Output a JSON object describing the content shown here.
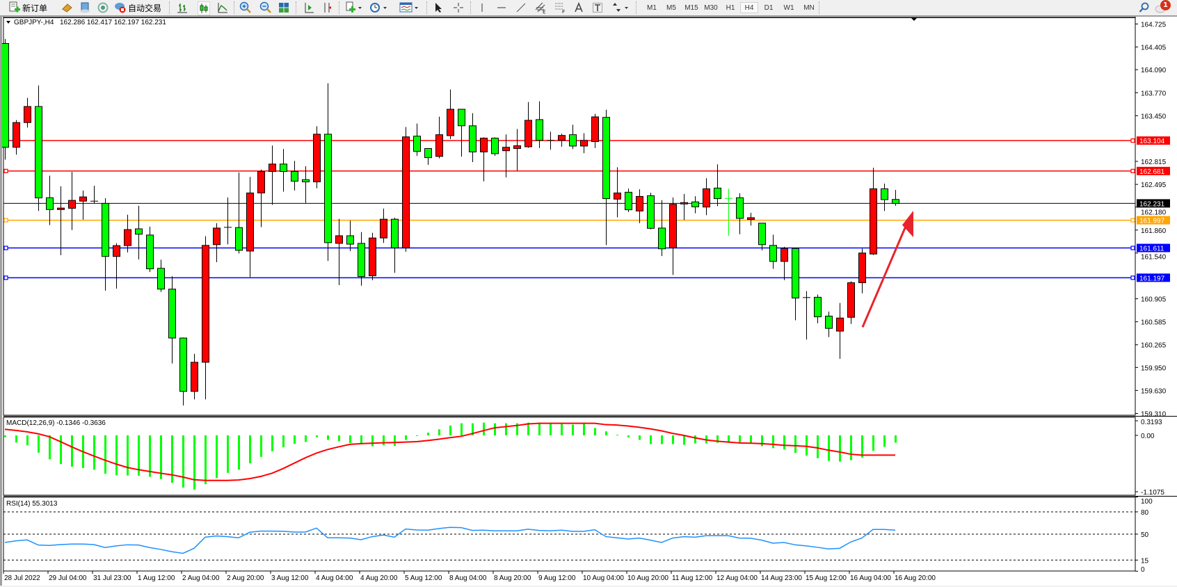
{
  "toolbar": {
    "new_order_label": "新订单",
    "auto_trading_label": "自动交易",
    "timeframes": [
      "M1",
      "M5",
      "M15",
      "M30",
      "H1",
      "H4",
      "D1",
      "W1",
      "MN"
    ],
    "active_timeframe": "H4",
    "notification_count": "1"
  },
  "chart_header": {
    "symbol": "GBPJPY-,H4",
    "ohlc": "162.286 162.417 162.197 162.231"
  },
  "colors": {
    "bull_candle": "#ff0000",
    "bear_candle": "#00ff00",
    "macd_histogram": "#00ff00",
    "macd_signal": "#ff0000",
    "rsi_line": "#1e90ff",
    "annotation_arrow": "#e8242a"
  },
  "price_axis": {
    "ticks": [
      "164.725",
      "164.405",
      "164.090",
      "163.770",
      "163.450",
      "162.815",
      "162.495",
      "162.180",
      "161.860",
      "161.540",
      "160.905",
      "160.585",
      "160.265",
      "159.950",
      "159.630",
      "159.310"
    ],
    "range": [
      159.31,
      164.725
    ]
  },
  "levels": [
    {
      "price": "163.104",
      "color": "#ff0000"
    },
    {
      "price": "162.681",
      "color": "#ff0000"
    },
    {
      "price": "162.231",
      "color": "#000000"
    },
    {
      "price": "161.997",
      "color": "#ffa500"
    },
    {
      "price": "161.611",
      "color": "#0000ff"
    },
    {
      "price": "161.197",
      "color": "#0000ff"
    }
  ],
  "time_axis": [
    "28 Jul 2022",
    "29 Jul 04:00",
    "31 Jul 23:00",
    "1 Aug 12:00",
    "2 Aug 04:00",
    "2 Aug 20:00",
    "3 Aug 12:00",
    "4 Aug 04:00",
    "4 Aug 20:00",
    "5 Aug 12:00",
    "8 Aug 04:00",
    "8 Aug 20:00",
    "9 Aug 12:00",
    "10 Aug 04:00",
    "10 Aug 20:00",
    "11 Aug 12:00",
    "12 Aug 04:00",
    "14 Aug 23:00",
    "15 Aug 12:00",
    "16 Aug 04:00",
    "16 Aug 20:00"
  ],
  "chart_data": [
    {
      "type": "candlestick",
      "symbol": "GBPJPY-",
      "timeframe": "H4",
      "ylim": [
        159.31,
        164.725
      ],
      "ohlc": [
        [
          164.454,
          164.516,
          162.839,
          163.011
        ],
        [
          163.011,
          163.389,
          162.908,
          163.355
        ],
        [
          163.355,
          163.698,
          163.286,
          163.578
        ],
        [
          163.578,
          163.87,
          162.125,
          162.307
        ],
        [
          162.31,
          162.616,
          161.929,
          162.145
        ],
        [
          162.145,
          162.468,
          161.51,
          162.166
        ],
        [
          162.163,
          162.668,
          161.86,
          162.273
        ],
        [
          162.262,
          162.41,
          162.005,
          162.321
        ],
        [
          162.262,
          162.475,
          162.228,
          162.262
        ],
        [
          162.231,
          162.303,
          161.018,
          161.493
        ],
        [
          161.493,
          161.678,
          161.046,
          161.644
        ],
        [
          161.644,
          162.073,
          161.548,
          161.867
        ],
        [
          161.877,
          162.197,
          161.451,
          161.802
        ],
        [
          161.791,
          161.908,
          161.276,
          161.321
        ],
        [
          161.328,
          161.448,
          161.0,
          161.039
        ],
        [
          161.039,
          161.218,
          160.005,
          160.359
        ],
        [
          160.359,
          160.366,
          159.421,
          159.617
        ],
        [
          159.617,
          160.139,
          159.506,
          160.022
        ],
        [
          160.022,
          161.774,
          159.506,
          161.647
        ],
        [
          161.657,
          161.956,
          161.413,
          161.888
        ],
        [
          161.898,
          162.314,
          161.661,
          161.898
        ],
        [
          161.895,
          162.661,
          161.534,
          161.578
        ],
        [
          161.568,
          162.599,
          161.207,
          162.376
        ],
        [
          162.376,
          162.702,
          161.901,
          162.675
        ],
        [
          162.675,
          163.035,
          162.211,
          162.778
        ],
        [
          162.778,
          162.987,
          162.393,
          162.675
        ],
        [
          162.675,
          162.822,
          162.41,
          162.54
        ],
        [
          162.561,
          162.747,
          162.238,
          162.53
        ],
        [
          162.53,
          163.303,
          162.441,
          163.193
        ],
        [
          163.193,
          163.901,
          161.431,
          161.685
        ],
        [
          161.675,
          162.015,
          161.094,
          161.781
        ],
        [
          161.781,
          161.991,
          161.568,
          161.664
        ],
        [
          161.675,
          161.833,
          161.087,
          161.214
        ],
        [
          161.224,
          161.822,
          161.163,
          161.75
        ],
        [
          161.75,
          162.159,
          161.682,
          162.011
        ],
        [
          162.011,
          162.032,
          161.266,
          161.613
        ],
        [
          161.613,
          163.293,
          161.558,
          163.156
        ],
        [
          163.166,
          163.341,
          162.891,
          162.953
        ],
        [
          162.994,
          162.994,
          162.767,
          162.867
        ],
        [
          162.884,
          163.437,
          162.857,
          163.186
        ],
        [
          163.173,
          163.815,
          163.125,
          163.54
        ],
        [
          163.54,
          163.54,
          162.881,
          163.31
        ],
        [
          163.31,
          163.485,
          162.805,
          162.946
        ],
        [
          162.946,
          163.149,
          162.537,
          163.138
        ],
        [
          163.138,
          163.149,
          162.891,
          162.922
        ],
        [
          162.963,
          163.19,
          162.592,
          163.011
        ],
        [
          162.994,
          163.265,
          162.685,
          163.032
        ],
        [
          163.018,
          163.64,
          163.004,
          163.386
        ],
        [
          163.396,
          163.65,
          163.0,
          163.107
        ],
        [
          163.107,
          163.228,
          162.977,
          163.107
        ],
        [
          163.107,
          163.2,
          163.018,
          163.176
        ],
        [
          163.186,
          163.324,
          162.987,
          163.028
        ],
        [
          163.028,
          163.207,
          162.929,
          163.107
        ],
        [
          163.09,
          163.475,
          163.0,
          163.434
        ],
        [
          163.427,
          163.533,
          161.651,
          162.297
        ],
        [
          162.29,
          162.733,
          162.037,
          162.376
        ],
        [
          162.386,
          162.437,
          162.111,
          162.142
        ],
        [
          162.125,
          162.427,
          161.956,
          162.328
        ],
        [
          162.338,
          162.379,
          161.87,
          161.884
        ],
        [
          161.888,
          162.276,
          161.499,
          161.599
        ],
        [
          161.613,
          162.314,
          161.235,
          162.218
        ],
        [
          162.225,
          162.362,
          162.001,
          162.242
        ],
        [
          162.252,
          162.331,
          162.094,
          162.183
        ],
        [
          162.18,
          162.581,
          162.067,
          162.434
        ],
        [
          162.444,
          162.774,
          162.193,
          162.297
        ],
        [
          162.301,
          162.434,
          161.781,
          162.3
        ],
        [
          162.31,
          162.372,
          161.802,
          162.022
        ],
        [
          162.008,
          162.101,
          161.922,
          162.032
        ],
        [
          161.956,
          161.956,
          161.578,
          161.657
        ],
        [
          161.647,
          161.795,
          161.321,
          161.424
        ],
        [
          161.424,
          161.627,
          161.163,
          161.603
        ],
        [
          161.603,
          161.603,
          160.606,
          160.915
        ],
        [
          160.922,
          161.012,
          160.338,
          160.922
        ],
        [
          160.926,
          160.963,
          160.565,
          160.654
        ],
        [
          160.664,
          160.726,
          160.373,
          160.493
        ],
        [
          160.455,
          160.846,
          160.07,
          160.637
        ],
        [
          160.647,
          161.149,
          160.555,
          161.128
        ],
        [
          161.128,
          161.603,
          160.98,
          161.541
        ],
        [
          161.527,
          162.726,
          161.513,
          162.434
        ],
        [
          162.434,
          162.506,
          162.125,
          162.283
        ],
        [
          162.286,
          162.417,
          162.197,
          162.231
        ]
      ]
    },
    {
      "type": "bar",
      "title": "MACD(12,26,9) -0.1346 -0.3636",
      "ylim": [
        -1.1075,
        0.3193
      ],
      "tick_labels": [
        "0.3193",
        "0.00",
        "-1.1075"
      ],
      "histogram": [
        -0.033,
        -0.132,
        -0.182,
        -0.318,
        -0.442,
        -0.529,
        -0.578,
        -0.603,
        -0.632,
        -0.706,
        -0.735,
        -0.739,
        -0.743,
        -0.764,
        -0.805,
        -0.876,
        -0.962,
        -1.0,
        -0.9,
        -0.785,
        -0.69,
        -0.632,
        -0.516,
        -0.396,
        -0.293,
        -0.219,
        -0.157,
        -0.12,
        -0.033,
        -0.083,
        -0.107,
        -0.14,
        -0.149,
        -0.202,
        -0.182,
        -0.194,
        -0.083,
        -0.012,
        0.05,
        0.112,
        0.182,
        0.223,
        0.223,
        0.235,
        0.223,
        0.223,
        0.223,
        0.235,
        0.235,
        0.211,
        0.211,
        0.198,
        0.211,
        0.136,
        0.074,
        0.012,
        -0.037,
        -0.083,
        -0.161,
        -0.161,
        -0.161,
        -0.173,
        -0.149,
        -0.149,
        -0.136,
        -0.136,
        -0.136,
        -0.136,
        -0.198,
        -0.235,
        -0.26,
        -0.322,
        -0.372,
        -0.421,
        -0.471,
        -0.483,
        -0.458,
        -0.409,
        -0.285,
        -0.211,
        -0.1346
      ],
      "signal": [
        0.112,
        0.091,
        0.066,
        0.029,
        -0.025,
        -0.116,
        -0.211,
        -0.301,
        -0.38,
        -0.458,
        -0.529,
        -0.591,
        -0.632,
        -0.665,
        -0.698,
        -0.727,
        -0.768,
        -0.818,
        -0.83,
        -0.83,
        -0.83,
        -0.822,
        -0.797,
        -0.756,
        -0.698,
        -0.611,
        -0.512,
        -0.413,
        -0.326,
        -0.26,
        -0.211,
        -0.165,
        -0.153,
        -0.145,
        -0.136,
        -0.132,
        -0.124,
        -0.116,
        -0.095,
        -0.07,
        -0.041,
        -0.017,
        0.033,
        0.087,
        0.14,
        0.161,
        0.182,
        0.211,
        0.223,
        0.223,
        0.223,
        0.223,
        0.223,
        0.223,
        0.198,
        0.19,
        0.173,
        0.149,
        0.12,
        0.083,
        0.037,
        0.0,
        -0.045,
        -0.083,
        -0.107,
        -0.124,
        -0.14,
        -0.145,
        -0.153,
        -0.165,
        -0.182,
        -0.19,
        -0.202,
        -0.231,
        -0.273,
        -0.306,
        -0.347,
        -0.3636,
        -0.3636,
        -0.3636,
        -0.3636
      ]
    },
    {
      "type": "line",
      "title": "RSI(14) 55.3013",
      "ylim": [
        0,
        100
      ],
      "tick_labels": [
        "100",
        "80",
        "50",
        "15",
        "0"
      ],
      "levels": [
        80,
        50,
        15
      ],
      "values": [
        38.75,
        40.9,
        42.2,
        35.3,
        34.7,
        35.9,
        36.6,
        36.6,
        35.9,
        31.9,
        34.1,
        35.6,
        35.3,
        31.9,
        29.4,
        26.3,
        24.1,
        30.9,
        45.9,
        47.5,
        46.6,
        45.0,
        52.5,
        54.1,
        54.1,
        53.8,
        52.8,
        52.8,
        58.1,
        45.0,
        45.0,
        44.7,
        42.5,
        46.6,
        48.75,
        45.9,
        56.9,
        55.6,
        55.3,
        57.5,
        59.1,
        58.75,
        55.0,
        55.3,
        54.4,
        54.4,
        54.4,
        56.6,
        55.0,
        54.4,
        55.3,
        53.75,
        53.75,
        55.9,
        46.6,
        45.0,
        43.4,
        44.7,
        41.9,
        38.75,
        44.7,
        46.6,
        45.9,
        47.8,
        47.8,
        47.8,
        44.7,
        44.4,
        41.9,
        37.8,
        38.75,
        35.6,
        34.1,
        32.2,
        30.0,
        30.9,
        39.4,
        44.7,
        56.25,
        56.25,
        55.3013
      ]
    }
  ]
}
